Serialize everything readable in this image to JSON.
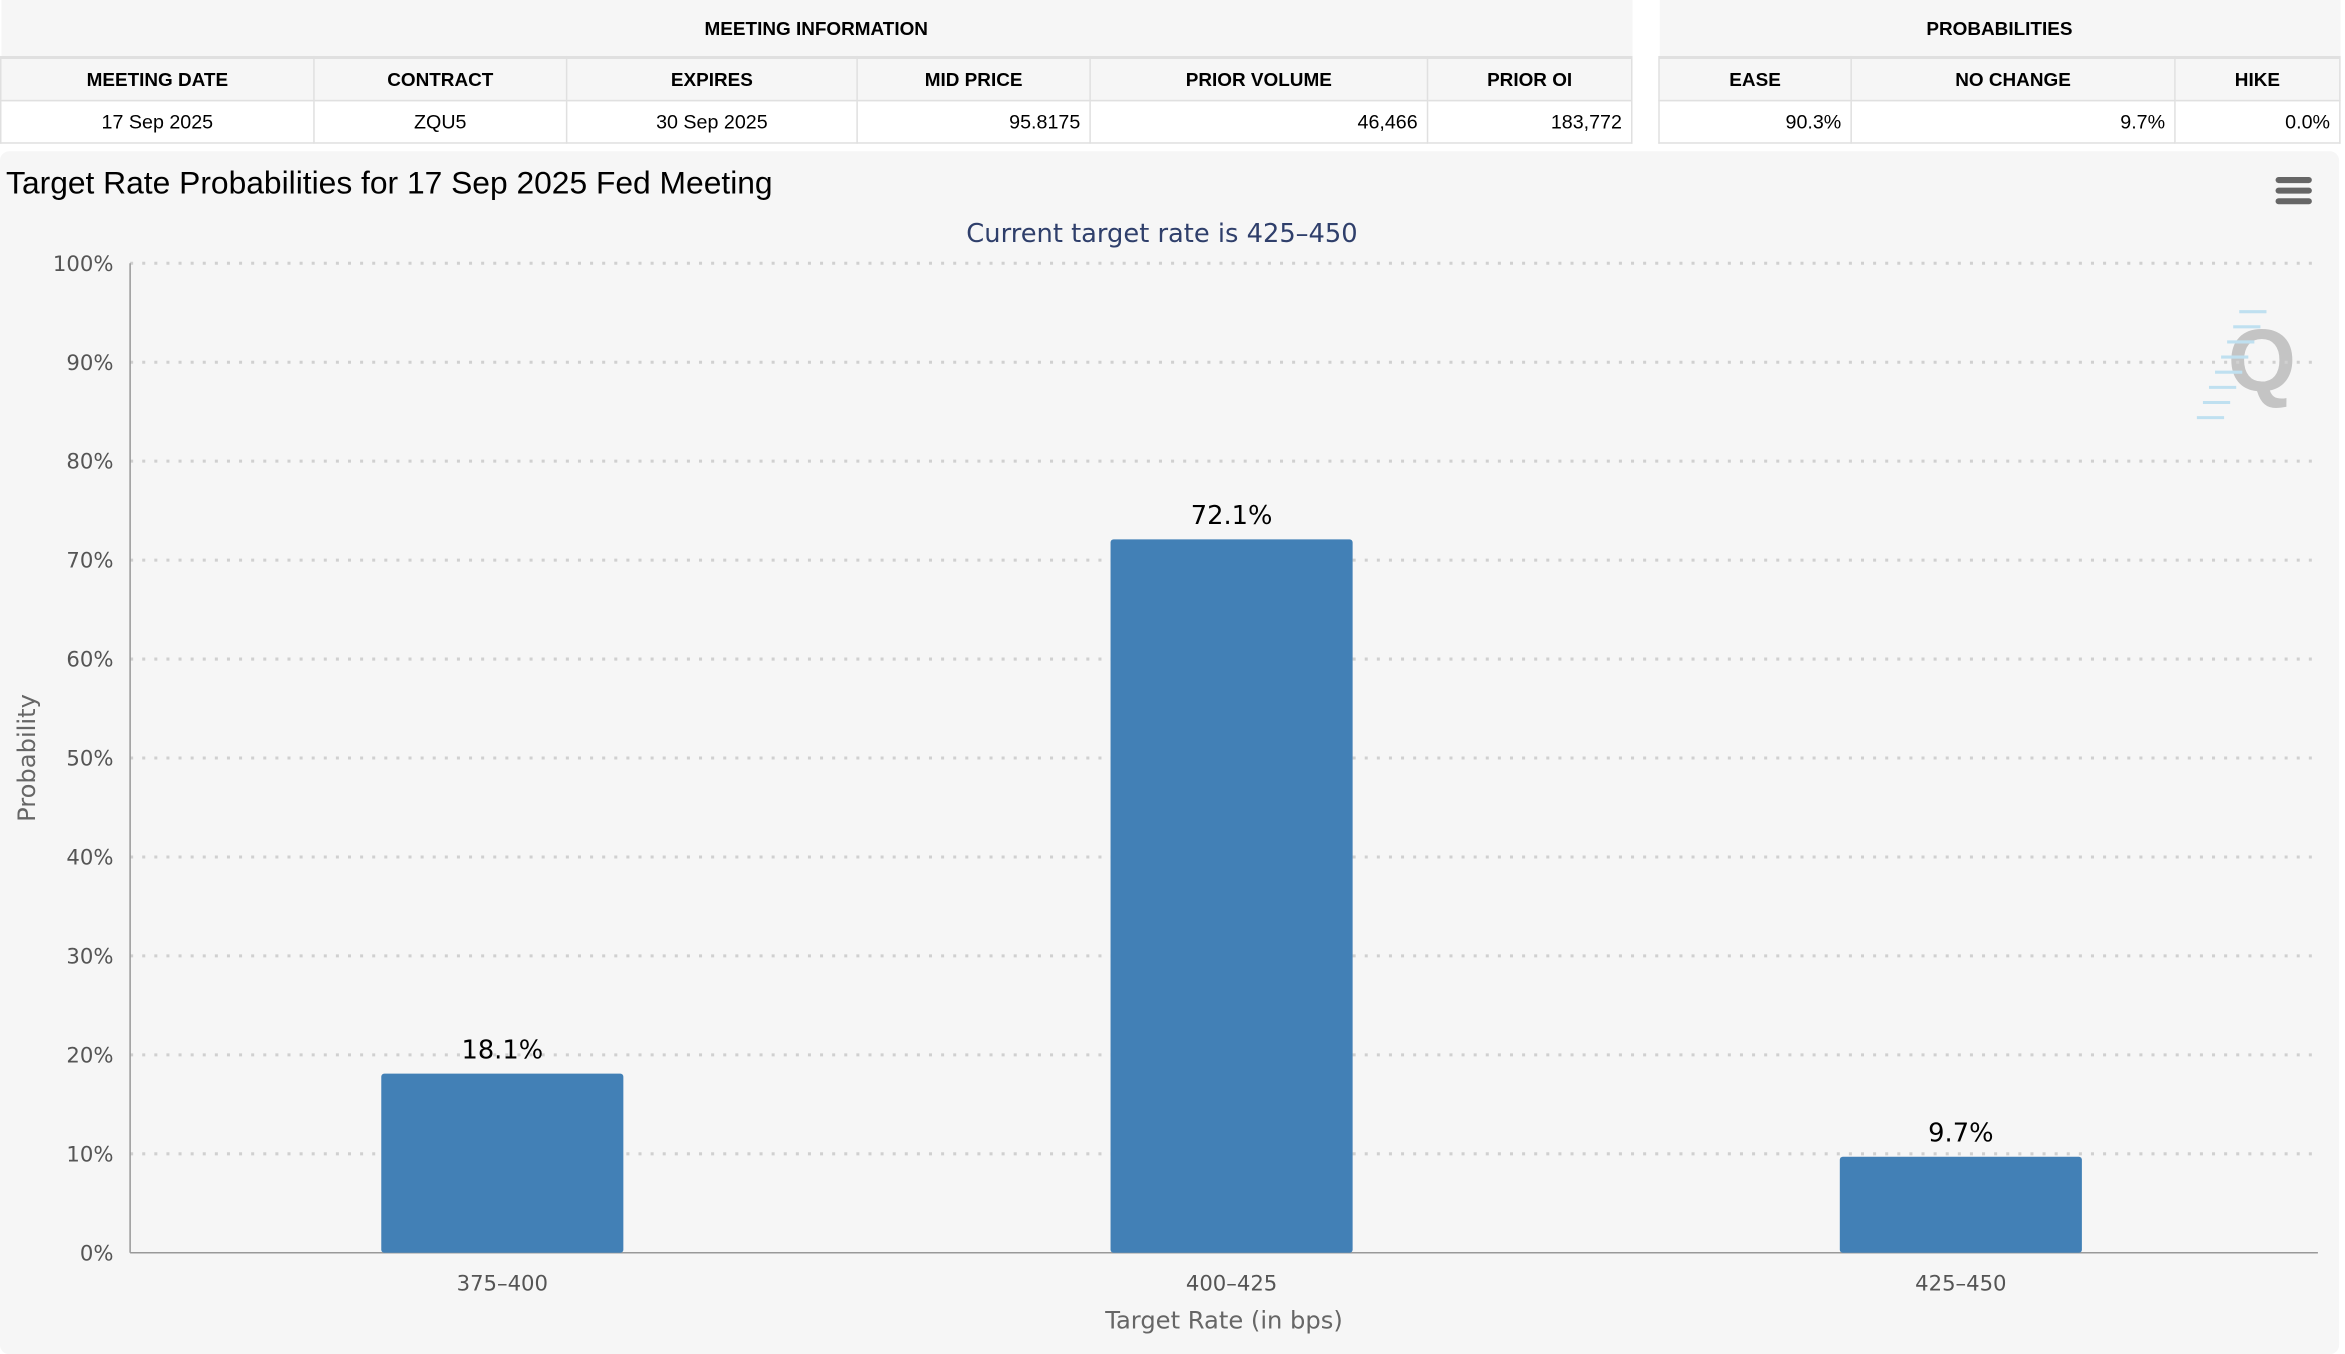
{
  "meeting_info": {
    "title": "MEETING INFORMATION",
    "headers": [
      "MEETING DATE",
      "CONTRACT",
      "EXPIRES",
      "MID PRICE",
      "PRIOR VOLUME",
      "PRIOR OI"
    ],
    "values": [
      "17 Sep 2025",
      "ZQU5",
      "30 Sep 2025",
      "95.8175",
      "46,466",
      "183,772"
    ]
  },
  "probabilities": {
    "title": "PROBABILITIES",
    "headers": [
      "EASE",
      "NO CHANGE",
      "HIKE"
    ],
    "values": [
      "90.3%",
      "9.7%",
      "0.0%"
    ]
  },
  "chart_data": {
    "type": "bar",
    "title": "Target Rate Probabilities for 17 Sep 2025 Fed Meeting",
    "subtitle": "Current target rate is 425–450",
    "xlabel": "Target Rate (in bps)",
    "ylabel": "Probability",
    "categories": [
      "375–400",
      "400–425",
      "425–450"
    ],
    "values": [
      18.1,
      72.1,
      9.7
    ],
    "data_labels": [
      "18.1%",
      "72.1%",
      "9.7%"
    ],
    "ylim": [
      0,
      100
    ],
    "yticks": [
      "0%",
      "10%",
      "20%",
      "30%",
      "40%",
      "50%",
      "60%",
      "70%",
      "80%",
      "90%",
      "100%"
    ],
    "grid": true,
    "bar_color": "#4280b6",
    "subtitle_color": "#2f3f6b"
  },
  "icons": {
    "menu": "hamburger-menu-icon",
    "logo": "Q"
  }
}
